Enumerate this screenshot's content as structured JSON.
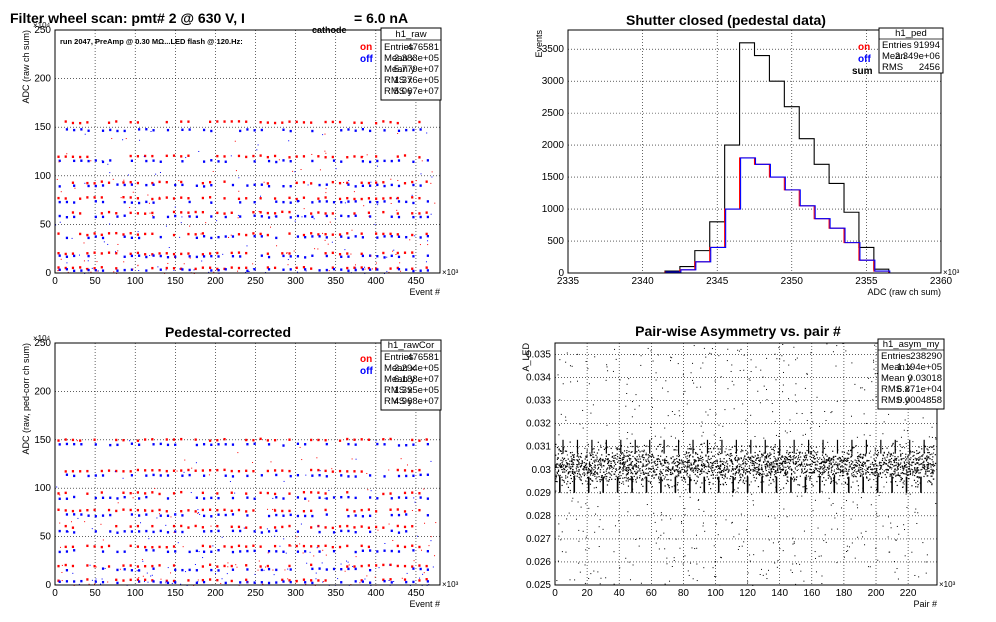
{
  "page": {
    "main_title_prefix": "Filter wheel scan: pmt#   2 @   630 V, I",
    "main_title_sub": "cathode",
    "main_title_suffix": " = 6.0 nA"
  },
  "colors": {
    "on": "#ff0000",
    "off": "#0000ff",
    "sum": "#000000"
  },
  "panels": {
    "raw": {
      "note": "run 2047, PreAmp @ 0.30 MΩ...LED flash @  120.Hz:",
      "legend": [
        "on",
        "off"
      ],
      "stats": {
        "name": "h1_raw",
        "rows": [
          [
            "Entries",
            "476581"
          ],
          [
            "Mean x",
            "2.383e+05"
          ],
          [
            "Mean y",
            "5.779e+07"
          ],
          [
            "RMS x",
            "1.376e+05"
          ],
          [
            "RMS y",
            "5.067e+07"
          ]
        ]
      }
    },
    "ped": {
      "legend": [
        "on",
        "off",
        "sum"
      ],
      "stats": {
        "name": "h1_ped",
        "rows": [
          [
            "Entries",
            "91994"
          ],
          [
            "Mean",
            "2.349e+06"
          ],
          [
            "RMS",
            "2456"
          ]
        ]
      }
    },
    "rawcor": {
      "legend": [
        "on",
        "off"
      ],
      "stats": {
        "name": "h1_rawCor",
        "rows": [
          [
            "Entries",
            "476581"
          ],
          [
            "Mean x",
            "2.294e+05"
          ],
          [
            "Mean y",
            "6.188e+07"
          ],
          [
            "RMS x",
            "1.395e+05"
          ],
          [
            "RMS y",
            "4.968e+07"
          ]
        ]
      }
    },
    "asym": {
      "stats": {
        "name": "h1_asym_my",
        "rows": [
          [
            "Entries",
            "238290"
          ],
          [
            "Mean x",
            "1.194e+05"
          ],
          [
            "Mean y",
            "0.03018"
          ],
          [
            "RMS x",
            "6.871e+04"
          ],
          [
            "RMS y",
            "0.0004858"
          ]
        ]
      }
    }
  },
  "chart_data": [
    {
      "type": "scatter",
      "title": "",
      "xlabel": "Event #",
      "ylabel": "ADC (raw ch sum)",
      "x_multiplier": "×10³",
      "y_multiplier": "×10⁴",
      "xlim": [
        0,
        480
      ],
      "ylim": [
        0,
        250
      ],
      "xticks": [
        0,
        50,
        100,
        150,
        200,
        250,
        300,
        350,
        400,
        450
      ],
      "yticks": [
        0,
        50,
        100,
        150,
        200,
        250
      ],
      "grid": true,
      "series": [
        {
          "name": "on",
          "levels": [
            155,
            120,
            93,
            77,
            62,
            40,
            20,
            5
          ]
        },
        {
          "name": "off",
          "levels": [
            147,
            115,
            90,
            73,
            58,
            37,
            17,
            3
          ]
        }
      ]
    },
    {
      "type": "line",
      "title": "Shutter closed (pedestal data)",
      "xlabel": "ADC (raw ch sum)",
      "ylabel": "Events",
      "x_multiplier": "×10³",
      "xlim": [
        2335,
        2360
      ],
      "ylim": [
        0,
        3800
      ],
      "xticks": [
        2335,
        2340,
        2345,
        2350,
        2355,
        2360
      ],
      "yticks": [
        0,
        500,
        1000,
        1500,
        2000,
        2500,
        3000,
        3500
      ],
      "grid": true,
      "x": [
        2341,
        2342,
        2343,
        2344,
        2345,
        2346,
        2347,
        2348,
        2349,
        2350,
        2351,
        2352,
        2353,
        2354,
        2355,
        2356,
        2357
      ],
      "series": [
        {
          "name": "sum",
          "values": [
            0,
            30,
            100,
            350,
            800,
            2000,
            3600,
            3400,
            3000,
            2600,
            2100,
            1700,
            1400,
            950,
            400,
            60,
            0
          ]
        },
        {
          "name": "on",
          "values": [
            0,
            15,
            50,
            175,
            400,
            1000,
            1800,
            1700,
            1500,
            1300,
            1050,
            850,
            700,
            475,
            200,
            30,
            0
          ]
        },
        {
          "name": "off",
          "values": [
            0,
            15,
            50,
            175,
            400,
            1000,
            1800,
            1700,
            1500,
            1300,
            1050,
            850,
            700,
            475,
            200,
            30,
            0
          ]
        }
      ]
    },
    {
      "type": "scatter",
      "title": "Pedestal-corrected",
      "xlabel": "Event #",
      "ylabel": "ADC (raw, ped-corr ch sum)",
      "x_multiplier": "×10³",
      "y_multiplier": "×10⁴",
      "xlim": [
        0,
        480
      ],
      "ylim": [
        0,
        250
      ],
      "xticks": [
        0,
        50,
        100,
        150,
        200,
        250,
        300,
        350,
        400,
        450
      ],
      "yticks": [
        0,
        50,
        100,
        150,
        200,
        250
      ],
      "grid": true,
      "series": [
        {
          "name": "on",
          "levels": [
            150,
            118,
            95,
            77,
            60,
            40,
            20,
            5
          ]
        },
        {
          "name": "off",
          "levels": [
            145,
            113,
            90,
            72,
            55,
            35,
            16,
            3
          ]
        }
      ]
    },
    {
      "type": "scatter",
      "title": "Pair-wise Asymmetry vs. pair #",
      "xlabel": "Pair #",
      "ylabel": "A_LED",
      "x_multiplier": "×10³",
      "xlim": [
        0,
        238
      ],
      "ylim": [
        0.025,
        0.0355
      ],
      "xticks": [
        0,
        20,
        40,
        60,
        80,
        100,
        120,
        140,
        160,
        180,
        200,
        220
      ],
      "yticks": [
        0.025,
        0.026,
        0.027,
        0.028,
        0.029,
        0.03,
        0.031,
        0.032,
        0.033,
        0.034,
        0.035
      ],
      "grid": true,
      "band_center": 0.0302,
      "band_halfwidth": 0.0006
    }
  ]
}
